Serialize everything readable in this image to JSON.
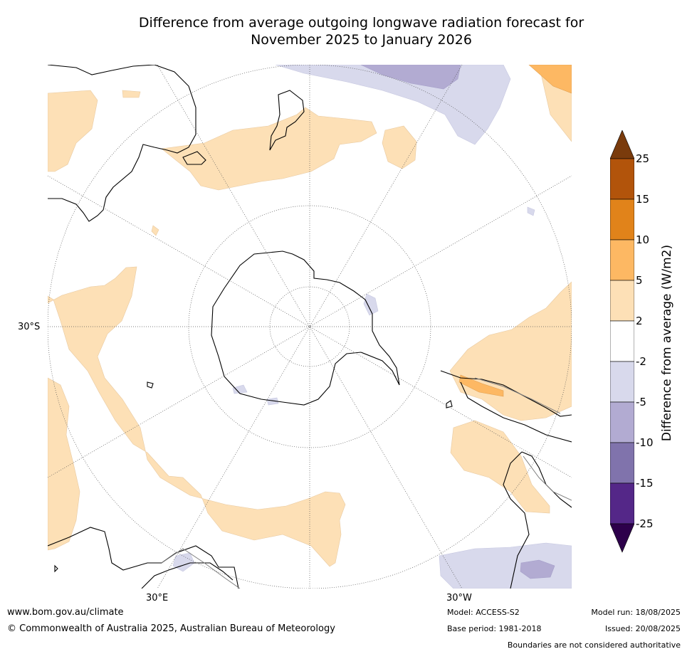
{
  "title_line1": "Difference from average outgoing longwave radiation forecast for",
  "title_line2": "November 2025 to January 2026",
  "lat_label": "30°S",
  "lon_label_left": "30°E",
  "lon_label_right": "30°W",
  "colorbar": {
    "title": "Difference from average (W/m2)",
    "ticks": [
      "25",
      "15",
      "10",
      "5",
      "2",
      "-2",
      "-5",
      "-10",
      "-15",
      "-25"
    ],
    "colors": [
      "#7a3b0c",
      "#b2540b",
      "#e1831a",
      "#fdb863",
      "#fde0b6",
      "#ffffff",
      "#d8d9ec",
      "#b2abd2",
      "#8073ac",
      "#542788",
      "#2d004b"
    ]
  },
  "footer": {
    "url": "www.bom.gov.au/climate",
    "copyright": "© Commonwealth of Australia 2025, Australian Bureau of Meteorology",
    "model": "Model: ACCESS-S2",
    "base_period": "Base period: 1981-2018",
    "model_run": "Model run: 18/08/2025",
    "issued": "Issued: 20/08/2025",
    "disclaimer": "Boundaries are not considered authoritative"
  }
}
